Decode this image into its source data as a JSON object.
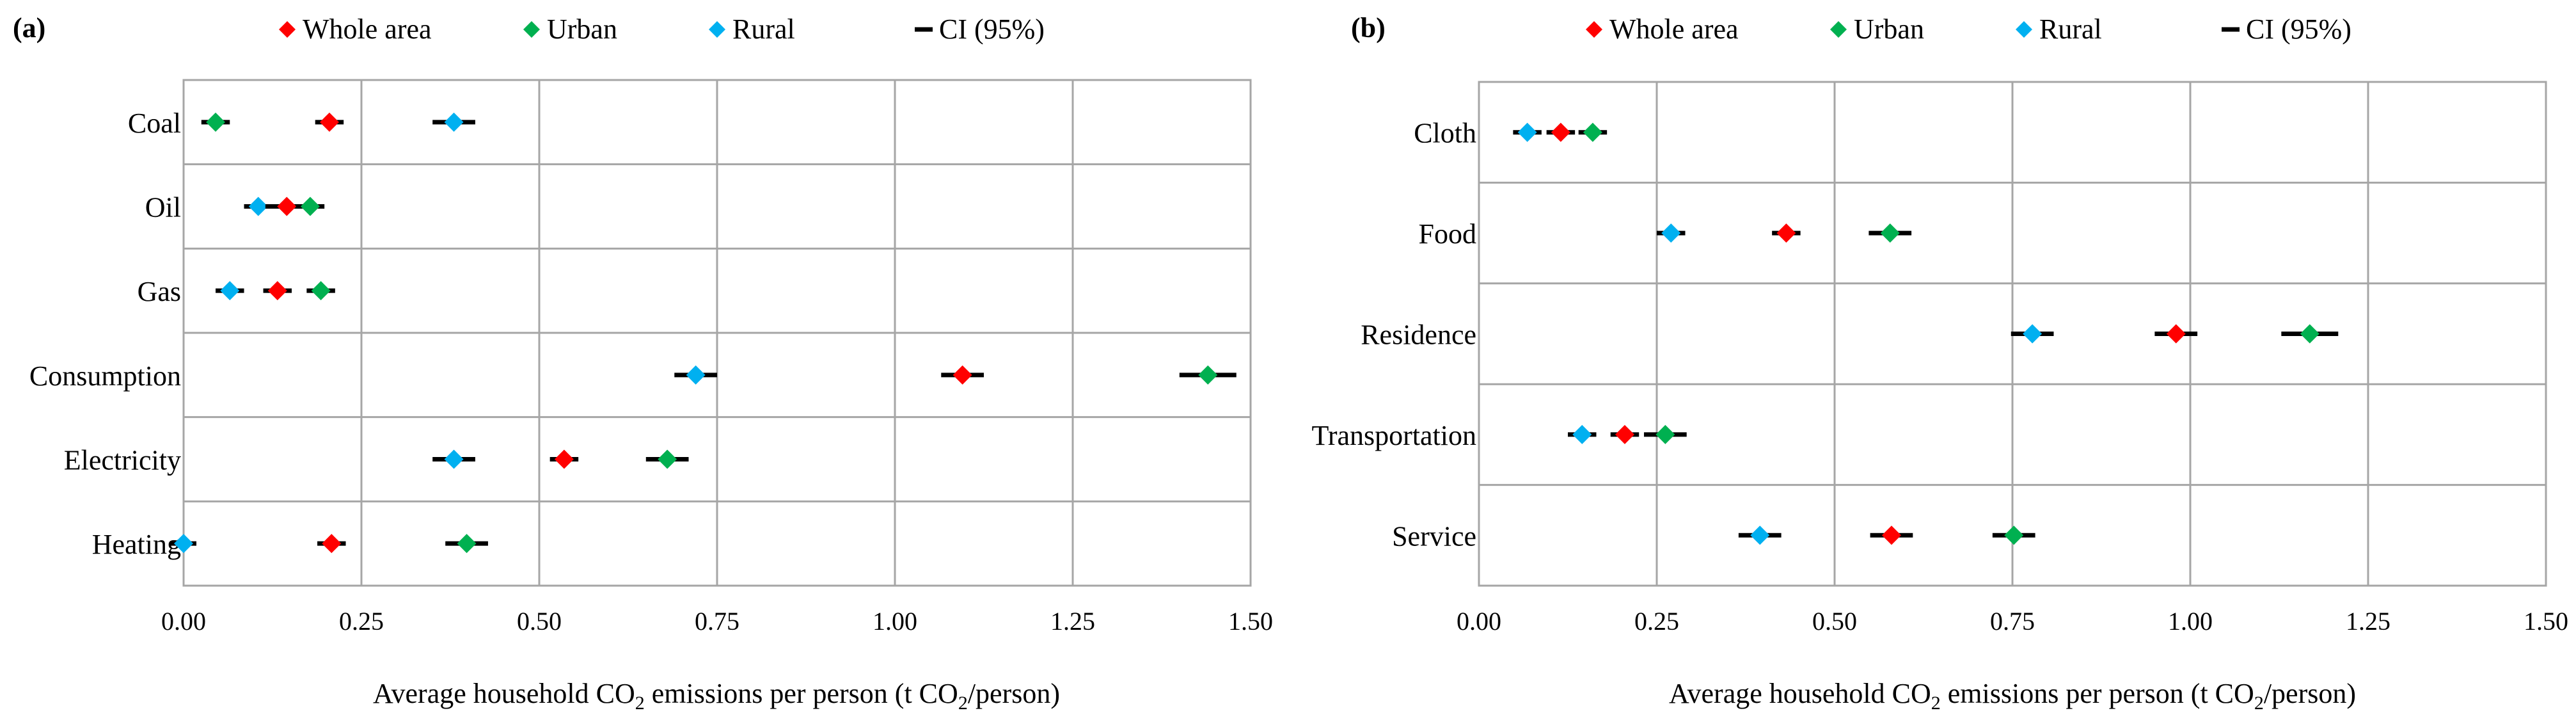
{
  "legend": {
    "whole": "Whole area",
    "urban": "Urban",
    "rural": "Rural",
    "ci": "CI (95%)"
  },
  "colors": {
    "whole": "#ff0000",
    "urban": "#00b050",
    "rural": "#00b0f0",
    "ci": "#000000",
    "grid": "#a6a6a6"
  },
  "chart_data": [
    {
      "type": "scatter",
      "panel_label": "(a)",
      "xlabel_parts": [
        "Average household CO",
        "2",
        " emissions per person (t CO",
        "2",
        "/person)"
      ],
      "xlim": [
        0,
        1.5
      ],
      "xticks": [
        "0.00",
        "0.25",
        "0.50",
        "0.75",
        "1.00",
        "1.25",
        "1.50"
      ],
      "categories": [
        "Coal",
        "Oil",
        "Gas",
        "Consumption",
        "Electricity",
        "Heating"
      ],
      "series": [
        {
          "name": "Whole area",
          "key": "whole",
          "values": [
            0.205,
            0.145,
            0.132,
            1.095,
            0.535,
            0.208
          ],
          "ci": [
            0.02,
            0.03,
            0.02,
            0.03,
            0.02,
            0.02
          ]
        },
        {
          "name": "Urban",
          "key": "urban",
          "values": [
            0.045,
            0.178,
            0.193,
            1.44,
            0.68,
            0.398
          ],
          "ci": [
            0.02,
            0.02,
            0.02,
            0.04,
            0.03,
            0.03
          ]
        },
        {
          "name": "Rural",
          "key": "rural",
          "values": [
            0.38,
            0.105,
            0.065,
            0.72,
            0.38,
            0.0
          ],
          "ci": [
            0.03,
            0.02,
            0.02,
            0.03,
            0.03,
            0.01
          ]
        }
      ]
    },
    {
      "type": "scatter",
      "panel_label": "(b)",
      "xlabel_parts": [
        "Average household CO",
        "2",
        " emissions per person (t CO",
        "2",
        "/person)"
      ],
      "xlim": [
        0,
        1.5
      ],
      "xticks": [
        "0.00",
        "0.25",
        "0.50",
        "0.75",
        "1.00",
        "1.25",
        "1.50"
      ],
      "categories": [
        "Cloth",
        "Food",
        "Residence",
        "Transportation",
        "Service"
      ],
      "series": [
        {
          "name": "Whole area",
          "key": "whole",
          "values": [
            0.115,
            0.432,
            0.98,
            0.205,
            0.58
          ],
          "ci": [
            0.02,
            0.02,
            0.03,
            0.02,
            0.03
          ]
        },
        {
          "name": "Urban",
          "key": "urban",
          "values": [
            0.16,
            0.578,
            1.168,
            0.262,
            0.752
          ],
          "ci": [
            0.02,
            0.03,
            0.04,
            0.03,
            0.03
          ]
        },
        {
          "name": "Rural",
          "key": "rural",
          "values": [
            0.068,
            0.27,
            0.778,
            0.145,
            0.395
          ],
          "ci": [
            0.02,
            0.02,
            0.03,
            0.02,
            0.03
          ]
        }
      ]
    }
  ]
}
